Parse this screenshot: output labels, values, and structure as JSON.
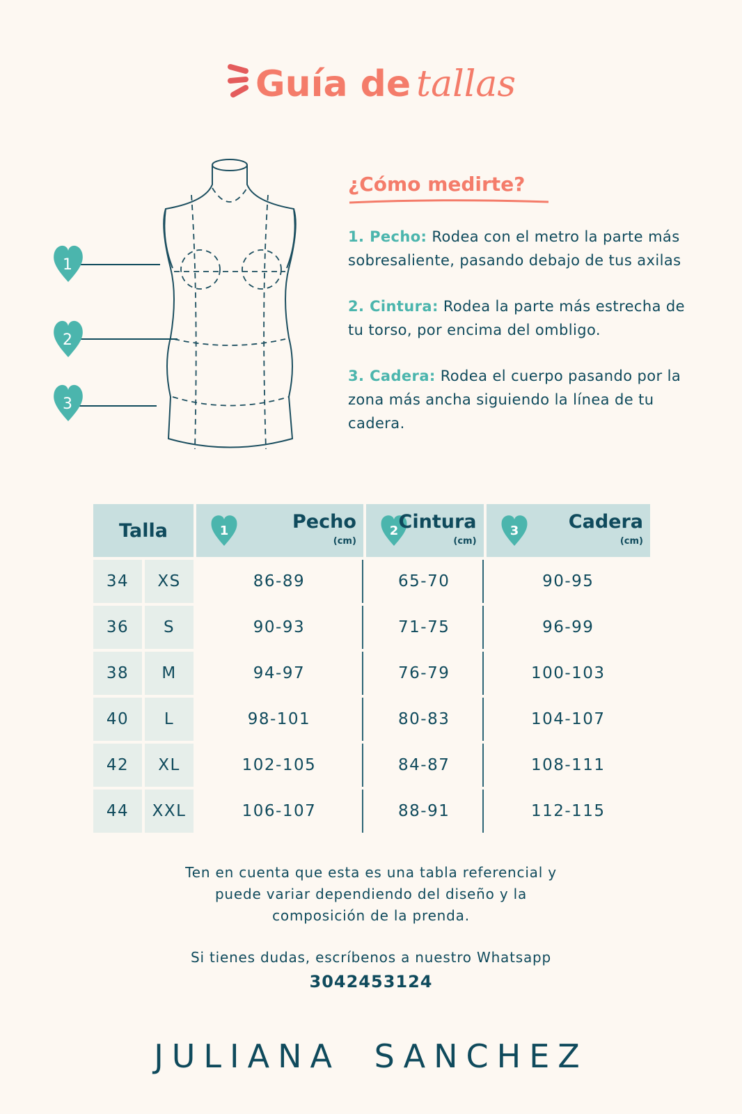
{
  "title": {
    "bold": "Guía de",
    "italic": "tallas"
  },
  "how": {
    "heading": "¿Cómo medirte?",
    "steps": [
      {
        "label": "1. Pecho:",
        "text": " Rodea con el metro la parte más sobresaliente, pasando debajo de tus axilas"
      },
      {
        "label": "2. Cintura:",
        "text": " Rodea la parte más estrecha de tu torso, por encima del ombligo."
      },
      {
        "label": "3. Cadera:",
        "text": " Rodea el cuerpo pasando por la zona más ancha siguiendo la línea de tu cadera."
      }
    ]
  },
  "markers": [
    "1",
    "2",
    "3"
  ],
  "table": {
    "headers": {
      "talla": "Talla",
      "pecho": "Pecho",
      "cintura": "Cintura",
      "cadera": "Cadera",
      "unit": "(cm)"
    },
    "rows": [
      [
        "34",
        "XS",
        "86-89",
        "65-70",
        "90-95"
      ],
      [
        "36",
        "S",
        "90-93",
        "71-75",
        "96-99"
      ],
      [
        "38",
        "M",
        "94-97",
        "76-79",
        "100-103"
      ],
      [
        "40",
        "L",
        "98-101",
        "80-83",
        "104-107"
      ],
      [
        "42",
        "XL",
        "102-105",
        "84-87",
        "108-111"
      ],
      [
        "44",
        "XXL",
        "106-107",
        "88-91",
        "112-115"
      ]
    ]
  },
  "note": {
    "line1": "Ten en cuenta que esta es una tabla referencial y",
    "line2": "puede variar dependiendo del diseño y la",
    "line3": "composición de la prenda.",
    "line4": "Si tienes dudas, escríbenos a nuestro Whatsapp",
    "phone": "3042453124"
  },
  "brand": "JULIANA SANCHEZ",
  "colors": {
    "background": "#fdf8f2",
    "coral": "#f47c6a",
    "teal": "#4bb5ad",
    "navy": "#0f4a5c",
    "header": "#c8dfdf"
  }
}
